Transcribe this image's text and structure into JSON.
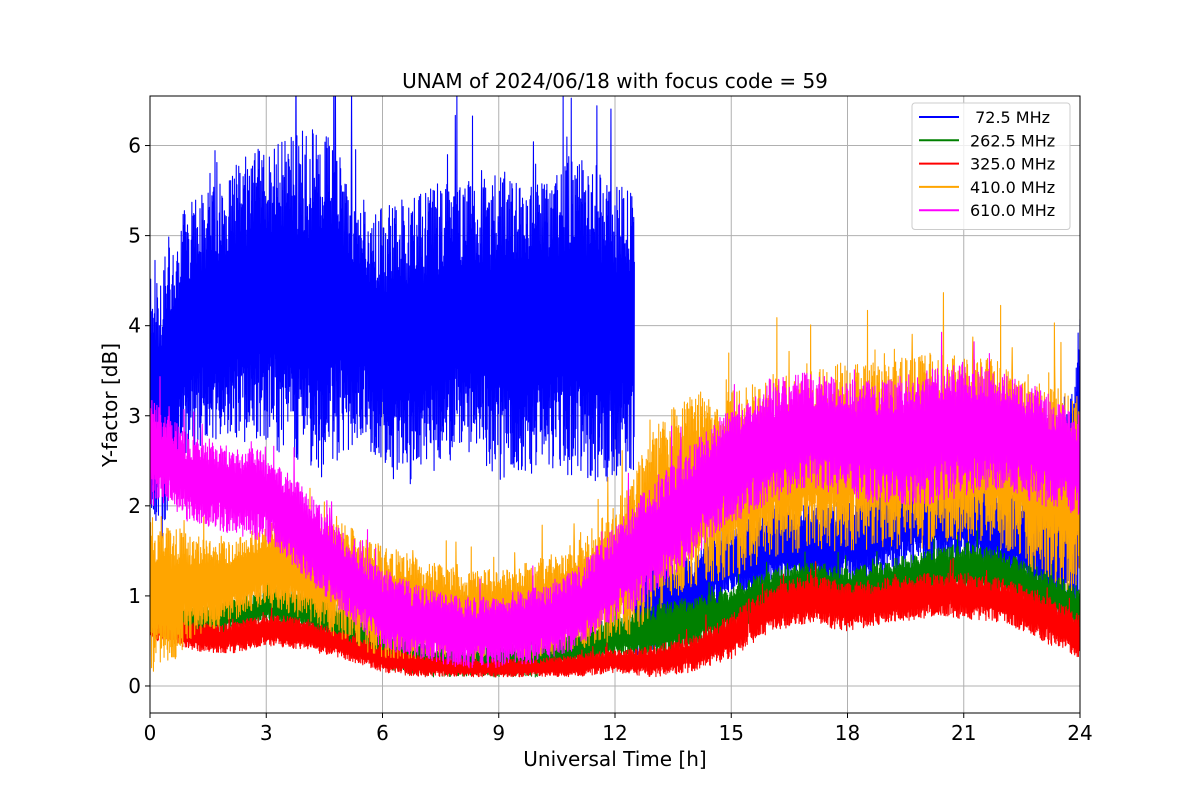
{
  "chart_data": {
    "type": "line",
    "title": "UNAM of 2024/06/18 with focus code = 59",
    "xlabel": "Universal Time [h]",
    "ylabel": "Y-factor [dB]",
    "xlim": [
      0,
      24
    ],
    "ylim": [
      -0.3,
      6.55
    ],
    "xticks": [
      0,
      3,
      6,
      9,
      12,
      15,
      18,
      21,
      24
    ],
    "yticks": [
      0,
      1,
      2,
      3,
      4,
      5,
      6
    ],
    "grid": true,
    "legend_position": "top-right",
    "series": [
      {
        "name": " 72.5 MHz",
        "color": "#0000ff",
        "draw_order": 1,
        "noise_seed": 11,
        "x": [
          0.0,
          0.3,
          0.8,
          1.5,
          2.0,
          2.5,
          3.0,
          3.5,
          4.0,
          4.5,
          5.0,
          5.5,
          6.0,
          6.5,
          7.0,
          7.5,
          8.0,
          8.5,
          9.0,
          9.5,
          10.0,
          10.5,
          11.0,
          11.5,
          12.0,
          12.5,
          12.51
        ],
        "lo": [
          1.8,
          1.6,
          2.5,
          2.7,
          2.8,
          2.7,
          2.6,
          2.5,
          2.4,
          2.3,
          2.6,
          2.7,
          2.4,
          2.2,
          2.3,
          2.4,
          2.6,
          2.5,
          2.3,
          2.2,
          2.4,
          2.4,
          2.3,
          2.2,
          2.3,
          2.4,
          null
        ],
        "hi": [
          4.8,
          4.7,
          5.3,
          5.5,
          5.7,
          5.9,
          6.0,
          6.1,
          6.2,
          6.2,
          5.8,
          5.4,
          5.3,
          5.4,
          5.5,
          5.6,
          5.6,
          5.6,
          5.7,
          5.6,
          5.6,
          5.7,
          5.9,
          5.8,
          5.6,
          5.5,
          null
        ],
        "late_x": [
          12.5,
          13.0,
          13.5,
          14.0,
          14.5,
          15.0,
          15.5,
          16.0,
          17.0,
          18.0,
          19.0,
          20.0,
          21.0,
          22.0,
          23.0,
          23.5,
          24.0
        ],
        "late_lo": [
          0.3,
          0.4,
          0.5,
          0.6,
          0.8,
          1.0,
          1.0,
          1.1,
          1.1,
          1.1,
          1.2,
          1.3,
          1.3,
          1.2,
          1.0,
          0.6,
          0.7
        ],
        "late_hi": [
          1.8,
          1.6,
          1.5,
          1.4,
          1.8,
          1.8,
          1.9,
          2.0,
          2.0,
          2.1,
          2.3,
          2.5,
          2.6,
          2.3,
          2.0,
          2.5,
          4.2
        ]
      },
      {
        "name": "262.5 MHz",
        "color": "#008000",
        "draw_order": 2,
        "noise_seed": 23,
        "x": [
          0.0,
          0.5,
          1.0,
          2.0,
          3.0,
          4.0,
          5.0,
          6.0,
          7.0,
          8.0,
          9.0,
          10.0,
          11.0,
          12.0,
          13.0,
          14.0,
          15.0,
          16.0,
          17.0,
          18.0,
          19.0,
          20.0,
          21.0,
          22.0,
          23.0,
          24.0
        ],
        "lo": [
          0.6,
          0.6,
          0.5,
          0.6,
          0.7,
          0.6,
          0.4,
          0.2,
          0.1,
          0.1,
          0.1,
          0.1,
          0.2,
          0.3,
          0.3,
          0.4,
          0.6,
          0.8,
          0.9,
          0.8,
          0.9,
          1.0,
          1.0,
          1.0,
          0.8,
          0.6
        ],
        "hi": [
          1.0,
          1.0,
          0.9,
          0.95,
          1.05,
          1.1,
          0.9,
          0.6,
          0.5,
          0.4,
          0.45,
          0.5,
          0.6,
          0.8,
          0.9,
          1.0,
          1.1,
          1.3,
          1.4,
          1.3,
          1.4,
          1.5,
          1.6,
          1.5,
          1.3,
          1.1
        ]
      },
      {
        "name": "325.0 MHz",
        "color": "#ff0000",
        "draw_order": 3,
        "noise_seed": 37,
        "x": [
          0.0,
          0.5,
          1.0,
          2.0,
          3.0,
          4.0,
          5.0,
          6.0,
          7.0,
          8.0,
          9.0,
          10.0,
          11.0,
          12.0,
          13.0,
          14.0,
          15.0,
          16.0,
          17.0,
          18.0,
          19.0,
          20.0,
          21.0,
          22.0,
          23.0,
          24.0
        ],
        "lo": [
          0.5,
          0.5,
          0.4,
          0.35,
          0.45,
          0.4,
          0.3,
          0.15,
          0.1,
          0.1,
          0.1,
          0.1,
          0.1,
          0.15,
          0.1,
          0.15,
          0.3,
          0.6,
          0.7,
          0.6,
          0.7,
          0.75,
          0.75,
          0.7,
          0.5,
          0.3
        ],
        "hi": [
          0.8,
          0.8,
          0.7,
          0.7,
          0.8,
          0.75,
          0.6,
          0.45,
          0.35,
          0.3,
          0.3,
          0.3,
          0.35,
          0.4,
          0.45,
          0.55,
          0.8,
          1.1,
          1.25,
          1.15,
          1.2,
          1.25,
          1.25,
          1.2,
          1.05,
          0.8
        ]
      },
      {
        "name": "410.0 MHz",
        "color": "#ffa500",
        "draw_order": 4,
        "noise_seed": 53,
        "x": [
          0.0,
          0.5,
          1.0,
          2.0,
          3.0,
          4.0,
          5.0,
          6.0,
          7.0,
          8.0,
          9.0,
          10.0,
          11.0,
          12.0,
          12.5,
          13.0,
          14.0,
          15.0,
          16.0,
          17.0,
          18.0,
          19.0,
          20.0,
          21.0,
          22.0,
          23.0,
          24.0
        ],
        "lo": [
          0.1,
          0.2,
          0.5,
          0.7,
          0.9,
          0.7,
          0.5,
          0.3,
          0.3,
          0.3,
          0.3,
          0.3,
          0.4,
          0.5,
          0.6,
          0.8,
          1.1,
          1.2,
          1.4,
          1.5,
          1.5,
          1.5,
          1.5,
          1.6,
          1.5,
          1.2,
          1.0
        ],
        "hi": [
          2.0,
          1.8,
          1.7,
          1.6,
          1.8,
          1.9,
          1.8,
          1.6,
          1.4,
          1.3,
          1.3,
          1.4,
          1.6,
          2.0,
          2.4,
          2.9,
          3.3,
          3.3,
          3.4,
          3.5,
          3.6,
          3.6,
          3.7,
          3.7,
          3.6,
          3.4,
          3.2
        ]
      },
      {
        "name": "610.0 MHz",
        "color": "#ff00ff",
        "draw_order": 5,
        "noise_seed": 71,
        "x": [
          0.0,
          0.5,
          1.0,
          2.0,
          3.0,
          4.0,
          5.0,
          6.0,
          7.0,
          8.0,
          9.0,
          10.0,
          11.0,
          12.0,
          13.0,
          14.0,
          15.0,
          16.0,
          17.0,
          18.0,
          19.0,
          20.0,
          21.0,
          22.0,
          23.0,
          24.0
        ],
        "lo": [
          2.0,
          2.0,
          1.8,
          1.7,
          1.6,
          1.2,
          0.8,
          0.4,
          0.3,
          0.2,
          0.2,
          0.25,
          0.4,
          0.7,
          1.0,
          1.4,
          1.8,
          2.0,
          2.2,
          2.1,
          2.0,
          2.0,
          2.1,
          2.2,
          2.0,
          1.9
        ],
        "hi": [
          3.2,
          3.0,
          2.8,
          2.7,
          2.6,
          2.2,
          1.7,
          1.3,
          1.1,
          1.0,
          1.0,
          1.1,
          1.3,
          1.8,
          2.3,
          2.7,
          3.1,
          3.4,
          3.5,
          3.4,
          3.4,
          3.5,
          3.6,
          3.5,
          3.3,
          3.0
        ]
      }
    ]
  }
}
